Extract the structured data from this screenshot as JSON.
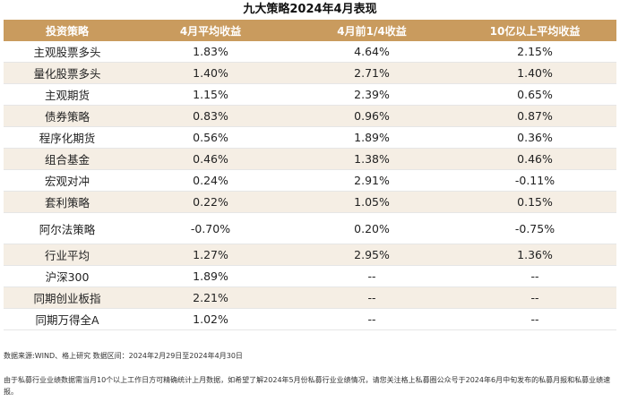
{
  "title": "九大策略2024年4月表现",
  "table": {
    "headers": [
      "投资策略",
      "4月平均收益",
      "4月前1/4收益",
      "10亿以上平均收益"
    ],
    "rows": [
      [
        "主观股票多头",
        "1.83%",
        "4.64%",
        "2.15%"
      ],
      [
        "量化股票多头",
        "1.40%",
        "2.71%",
        "1.40%"
      ],
      [
        "主观期货",
        "1.15%",
        "2.39%",
        "0.65%"
      ],
      [
        "债券策略",
        "0.83%",
        "0.96%",
        "0.87%"
      ],
      [
        "程序化期货",
        "0.56%",
        "1.89%",
        "0.36%"
      ],
      [
        "组合基金",
        "0.46%",
        "1.38%",
        "0.46%"
      ],
      [
        "宏观对冲",
        "0.24%",
        "2.91%",
        "-0.11%"
      ],
      [
        "套利策略",
        "0.22%",
        "1.05%",
        "0.15%"
      ],
      [
        "阿尔法策略",
        "-0.70%",
        "0.20%",
        "-0.75%"
      ],
      [
        "行业平均",
        "1.27%",
        "2.95%",
        "1.36%"
      ],
      [
        "沪深300",
        "1.89%",
        "--",
        "--"
      ],
      [
        "同期创业板指",
        "2.21%",
        "--",
        "--"
      ],
      [
        "同期万得全A",
        "1.02%",
        "--",
        "--"
      ]
    ]
  },
  "source": "数据来源:WIND、格上研究  数据区间：2024年2月29日至2024年4月30日",
  "note": "由于私募行业业绩数据需当月10个以上工作日方可精确统计上月数据，如希望了解2024年5月份私募行业业绩情况，请您关注格上私募圈公众号于2024年6月中旬发布的私募月报和私募业绩速报。"
}
